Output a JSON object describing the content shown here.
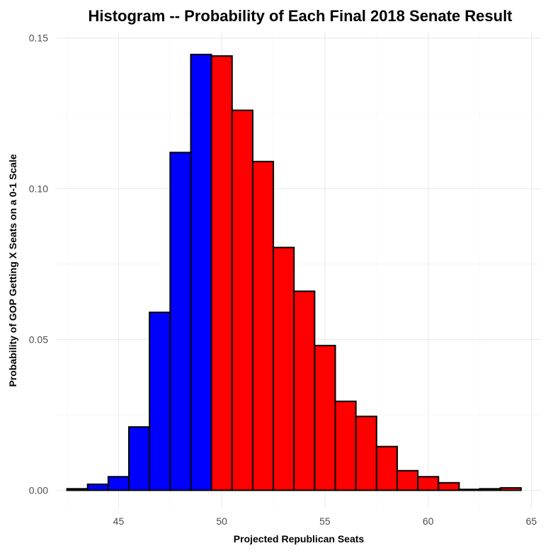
{
  "chart_data": {
    "type": "bar",
    "title": "Histogram -- Probability of Each Final 2018 Senate Result",
    "xlabel": "Projected Republican Seats",
    "ylabel": "Probability of GOP Getting X Seats on a 0-1 Scale",
    "xlim": [
      42,
      65.5
    ],
    "ylim": [
      -0.006,
      0.152
    ],
    "x_ticks": [
      45,
      50,
      55,
      60,
      65
    ],
    "x_tick_labels": [
      "45",
      "50",
      "55",
      "60",
      "65"
    ],
    "y_ticks": [
      0,
      0.05,
      0.1,
      0.15
    ],
    "y_tick_labels": [
      "0.00",
      "0.05",
      "0.10",
      "0.15"
    ],
    "grid": true,
    "legend": "none",
    "bin_width": 1,
    "categories": [
      43,
      44,
      45,
      46,
      47,
      48,
      49,
      50,
      51,
      52,
      53,
      54,
      55,
      56,
      57,
      58,
      59,
      60,
      61,
      62,
      63,
      64
    ],
    "values": [
      0.0005,
      0.002,
      0.0045,
      0.021,
      0.059,
      0.112,
      0.1445,
      0.144,
      0.126,
      0.109,
      0.0805,
      0.066,
      0.048,
      0.0295,
      0.0245,
      0.0145,
      0.0065,
      0.0045,
      0.0025,
      0.0003,
      0.0005,
      0.0008
    ],
    "bar_colors": [
      "#0000ff",
      "#0000ff",
      "#0000ff",
      "#0000ff",
      "#0000ff",
      "#0000ff",
      "#0000ff",
      "#ff0000",
      "#ff0000",
      "#ff0000",
      "#ff0000",
      "#ff0000",
      "#ff0000",
      "#ff0000",
      "#ff0000",
      "#ff0000",
      "#ff0000",
      "#ff0000",
      "#ff0000",
      "#ff0000",
      "#ff0000",
      "#ff0000"
    ],
    "colors": {
      "democrat": "#0000ff",
      "republican": "#ff0000",
      "outline": "#000000",
      "grid": "#ebebeb"
    }
  }
}
